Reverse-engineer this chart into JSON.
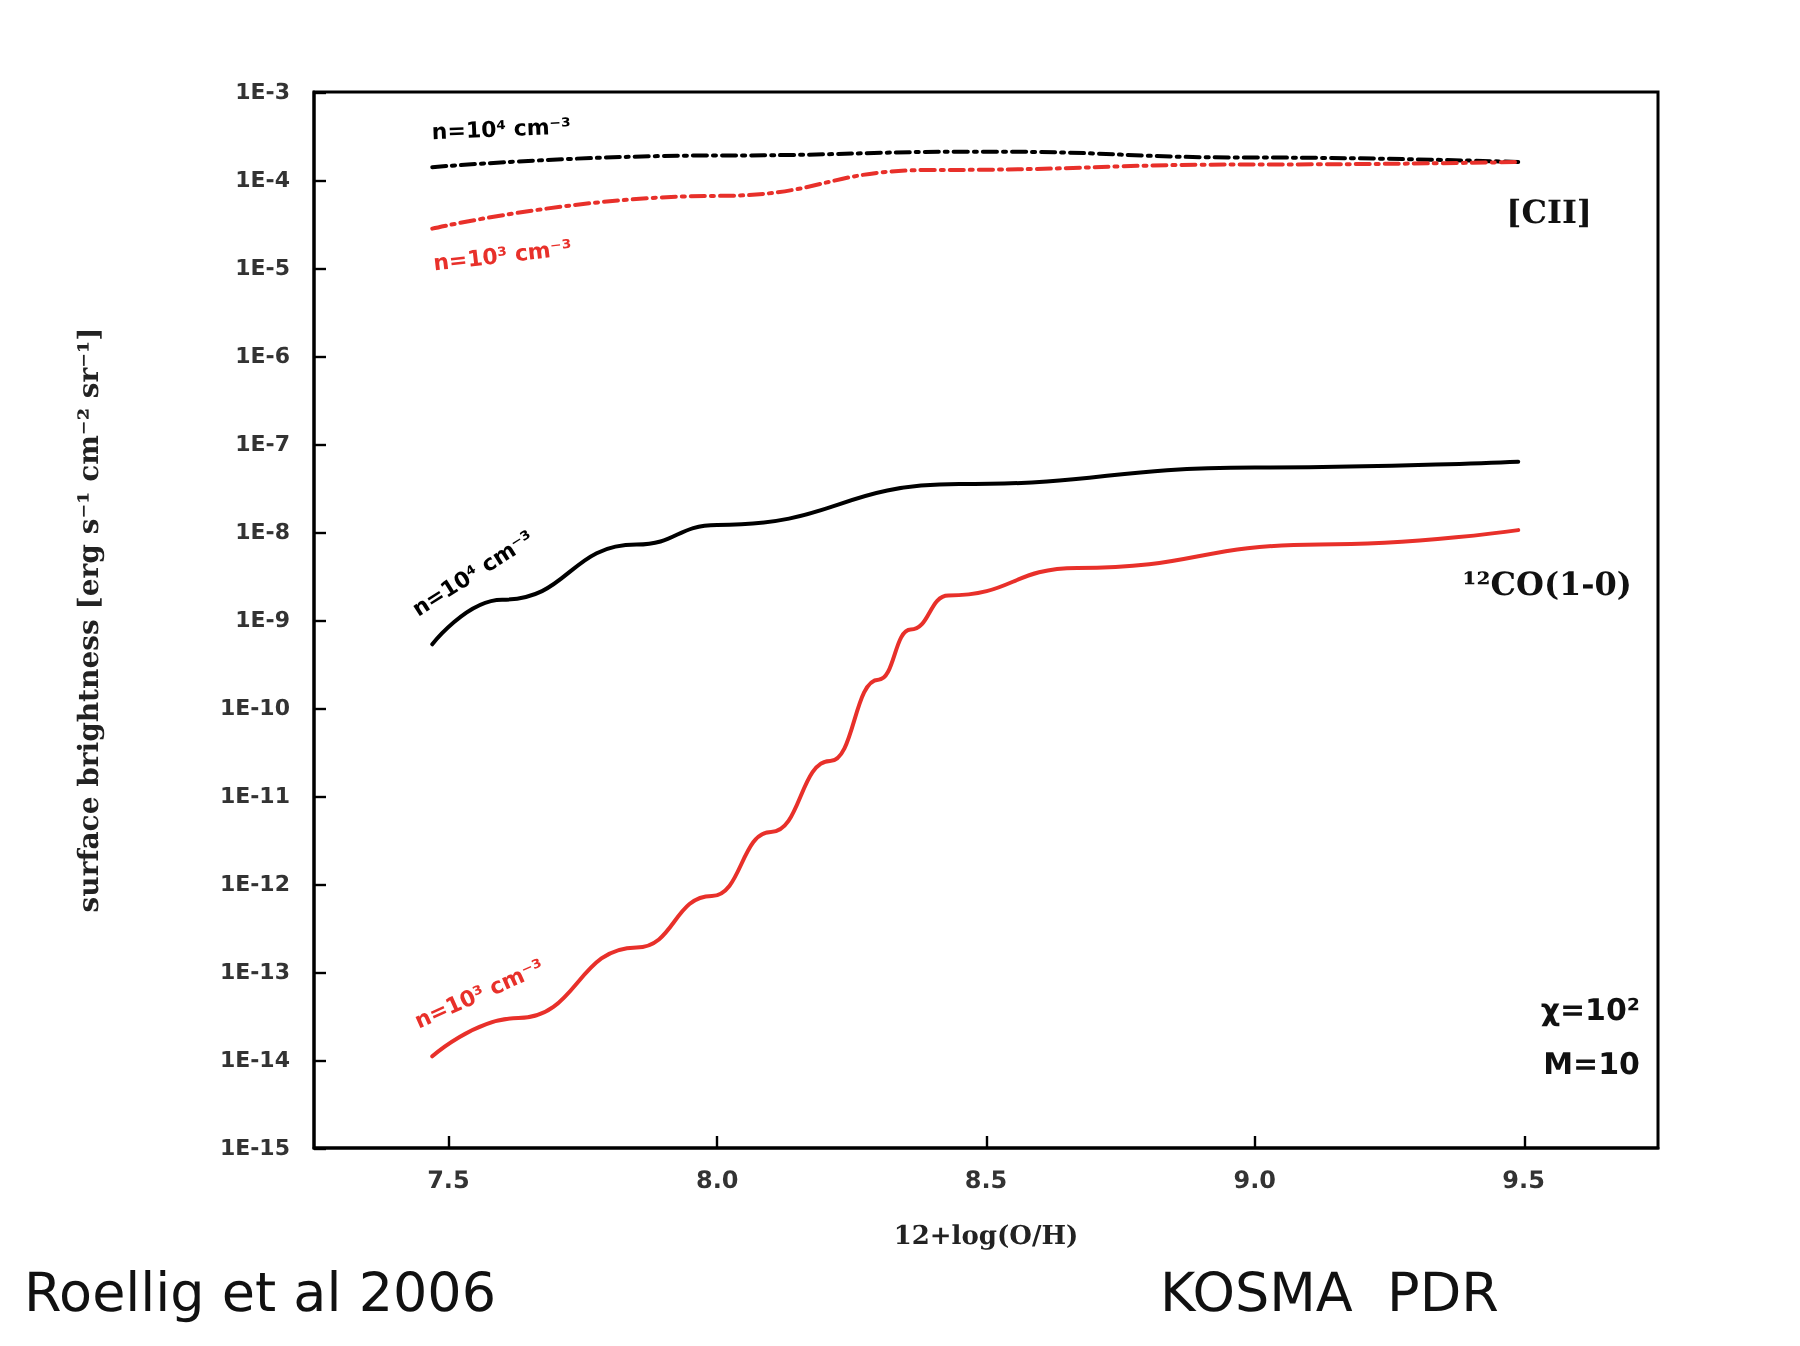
{
  "chart_data": {
    "type": "line",
    "xlabel": "12+log(O/H)",
    "ylabel": "surface brightness [erg s⁻¹ cm⁻² sr⁻¹]",
    "log": "y",
    "grid": false,
    "legend": false,
    "marker": "none",
    "xlim": [
      7.25,
      9.75
    ],
    "xticks": [
      {
        "value": 7.5,
        "label": "7.5"
      },
      {
        "value": 8,
        "label": "8.0"
      },
      {
        "value": 8.5,
        "label": "8.5"
      },
      {
        "value": 9,
        "label": "9.0"
      },
      {
        "value": 9.5,
        "label": "9.5"
      }
    ],
    "ylim": [
      1e-15,
      0.001
    ],
    "yticks": [
      {
        "value": 1e-15,
        "label": "1E-15"
      },
      {
        "value": 1e-14,
        "label": "1E-14"
      },
      {
        "value": 1e-13,
        "label": "1E-13"
      },
      {
        "value": 1e-12,
        "label": "1E-12"
      },
      {
        "value": 1e-11,
        "label": "1E-11"
      },
      {
        "value": 1e-10,
        "label": "1E-10"
      },
      {
        "value": 1e-09,
        "label": "1E-9"
      },
      {
        "value": 1e-08,
        "label": "1E-8"
      },
      {
        "value": 1e-07,
        "label": "1E-7"
      },
      {
        "value": 1e-06,
        "label": "1E-6"
      },
      {
        "value": 1e-05,
        "label": "1E-5"
      },
      {
        "value": 0.0001,
        "label": "1E-4"
      },
      {
        "value": 0.001,
        "label": "1E-3"
      }
    ],
    "series": [
      {
        "name": "n=10⁴ cm⁻³",
        "color": "#000000",
        "line_style": "dashed",
        "x": [
          7.47,
          8.0,
          8.5,
          9.0,
          9.49
        ],
        "values": [
          0.00014,
          0.00019,
          0.00021,
          0.00018,
          0.00016
        ]
      },
      {
        "name": "n=10³ cm⁻³",
        "color": "#e8302a",
        "line_style": "dashed",
        "x": [
          7.47,
          8.0,
          8.4,
          9.0,
          9.49
        ],
        "values": [
          2.8e-05,
          6.6e-05,
          0.00013,
          0.00015,
          0.00016
        ]
      },
      {
        "name": "n=10⁴ cm⁻³",
        "color": "#000000",
        "line_style": "solid",
        "x": [
          7.47,
          7.6,
          7.85,
          8.0,
          8.45,
          9.0,
          9.49
        ],
        "values": [
          5.3e-10,
          1.7e-09,
          7.2e-09,
          1.2e-08,
          3.5e-08,
          5.4e-08,
          6.3e-08
        ]
      },
      {
        "name": "n=10³ cm⁻³",
        "color": "#e8302a",
        "line_style": "solid",
        "x": [
          7.47,
          7.63,
          7.85,
          7.99,
          8.1,
          8.21,
          8.3,
          8.36,
          8.43,
          8.67,
          9.12,
          9.49
        ],
        "values": [
          1.1e-14,
          3e-14,
          1.9e-13,
          7.3e-13,
          3.9e-12,
          2.5e-11,
          2.1e-10,
          7.8e-10,
          1.9e-09,
          3.9e-09,
          7.2e-09,
          1.05e-08
        ]
      }
    ],
    "annotations": [
      "[CII]",
      "¹²CO(1-0)",
      "χ=10²",
      "M=10",
      "Roellig et al 2006",
      "KOSMA  PDR"
    ]
  }
}
